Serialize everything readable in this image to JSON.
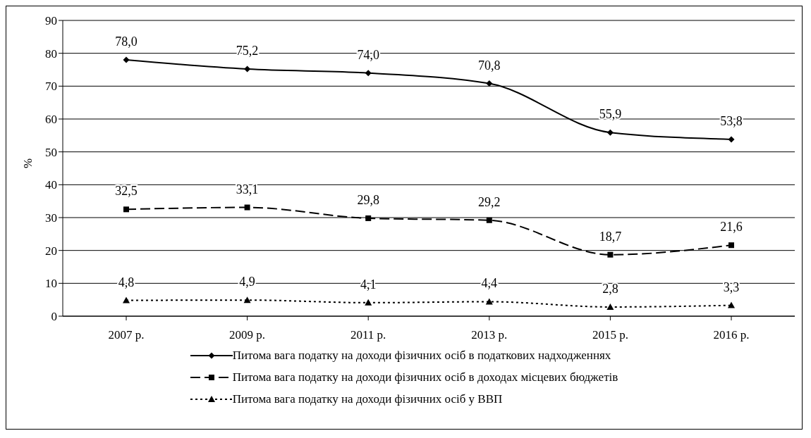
{
  "chart_data": {
    "type": "line",
    "ylabel": "%",
    "categories": [
      "2007 р.",
      "2009 р.",
      "2011 р.",
      "2013 р.",
      "2015 р.",
      "2016 р."
    ],
    "series": [
      {
        "name": "Питома вага податку на доходи фізичних осіб в податкових надходженнях",
        "color": "#000000",
        "values": [
          78.0,
          75.2,
          74.0,
          70.8,
          55.9,
          53.8
        ],
        "value_labels": [
          "78,0",
          "75,2",
          "74,0",
          "70,8",
          "55,9",
          "53,8"
        ],
        "marker": "diamond",
        "line_style": "solid"
      },
      {
        "name": "Питома вага податку на доходи фізичних осіб в доходах місцевих бюджетів",
        "color": "#000000",
        "values": [
          32.5,
          33.1,
          29.8,
          29.2,
          18.7,
          21.6
        ],
        "value_labels": [
          "32,5",
          "33,1",
          "29,8",
          "29,2",
          "18,7",
          "21,6"
        ],
        "marker": "square",
        "line_style": "dashed"
      },
      {
        "name": "Питома вага податку на доходи фізичних осіб у ВВП",
        "color": "#000000",
        "values": [
          4.8,
          4.9,
          4.1,
          4.4,
          2.8,
          3.3
        ],
        "value_labels": [
          "4,8",
          "4,9",
          "4,1",
          "4,4",
          "2,8",
          "3,3"
        ],
        "marker": "triangle",
        "line_style": "dotted"
      }
    ],
    "ylim": [
      0,
      90
    ],
    "yticks": [
      0,
      10,
      20,
      30,
      40,
      50,
      60,
      70,
      80,
      90
    ],
    "grid": "y",
    "legend": "bottom"
  }
}
